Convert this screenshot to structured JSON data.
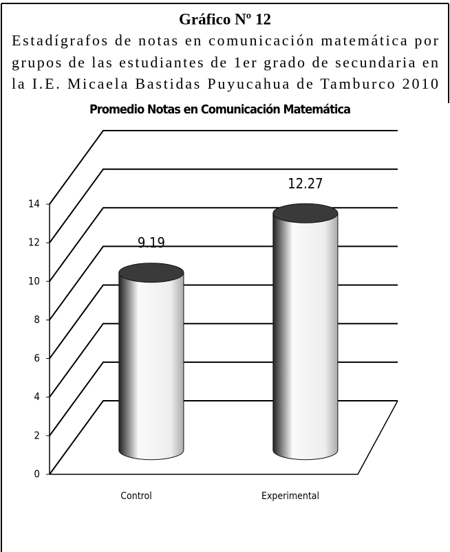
{
  "chart_data": {
    "type": "bar",
    "title": "Gráfico Nº 12",
    "subtitle": [
      "Estadígrafos de notas en comunicación matemática por",
      "grupos de las estudiantes de 1er grado de secundaria en",
      "la I.E. Micaela Bastidas Puyucahua de Tamburco  2010"
    ],
    "chart_title": "Promedio Notas en Comunicación Matemática",
    "categories": [
      "Control",
      "Experimental"
    ],
    "values": [
      9.19,
      12.27
    ],
    "color": "#ffffff",
    "top_color": "#3a3a3a",
    "ylim": [
      0,
      14
    ],
    "yticks": [
      0,
      2,
      4,
      6,
      8,
      10,
      12,
      14
    ],
    "grid": true
  }
}
